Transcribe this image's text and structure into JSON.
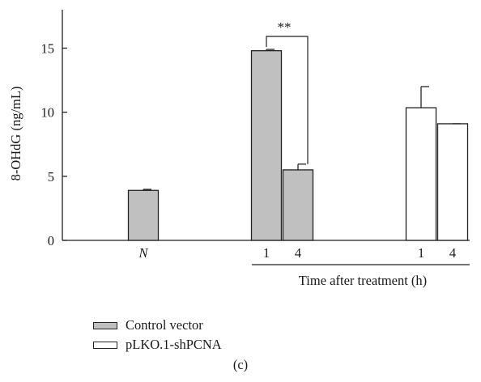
{
  "chart_data": {
    "type": "bar",
    "ylabel": "8-OHdG (ng/mL)",
    "xlabel": "Time after treatment (h)",
    "ylim": [
      0,
      18
    ],
    "yticks": [
      0,
      5,
      10,
      15
    ],
    "series": [
      {
        "name": "Control vector",
        "color": "#c0c0c0",
        "values": [
          {
            "x": "N",
            "y": 3.9,
            "err": 0.08
          },
          {
            "x": "1",
            "y": 14.8,
            "err": 0.1
          },
          {
            "x": "4",
            "y": 5.5,
            "err": 0.45
          }
        ]
      },
      {
        "name": "pLKO.1-shPCNA",
        "color": "#ffffff",
        "values": [
          {
            "x": "1",
            "y": 10.35,
            "err": 1.65
          },
          {
            "x": "4",
            "y": 9.1,
            "err": 0.0
          }
        ]
      }
    ],
    "categories": [
      "N",
      "1",
      "4",
      "1",
      "4"
    ],
    "annotations": [
      {
        "text": "**",
        "between": [
          "1",
          "4"
        ],
        "series": "Control vector"
      }
    ],
    "legend_position": "bottom-left"
  },
  "panel_label": "(c)"
}
